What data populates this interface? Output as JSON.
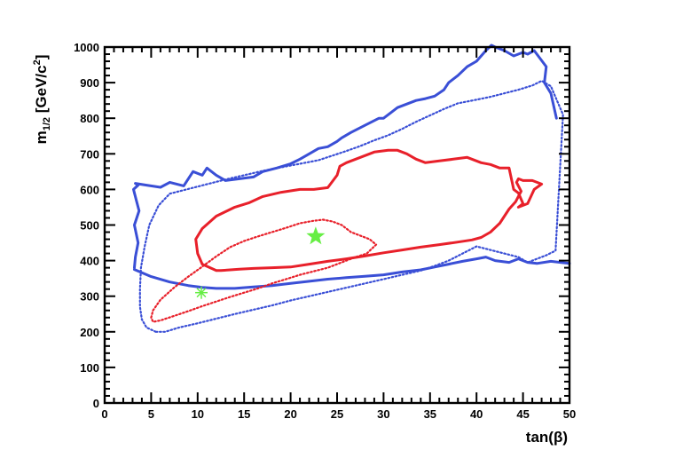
{
  "chart_data": {
    "type": "line",
    "xlabel": "tan(β)",
    "ylabel": "m1/2 [GeV/c2]",
    "xlim": [
      0,
      50
    ],
    "ylim": [
      0,
      1000
    ],
    "xticks": [
      "0",
      "5",
      "10",
      "15",
      "20",
      "25",
      "30",
      "35",
      "40",
      "45",
      "50"
    ],
    "yticks": [
      "0",
      "100",
      "200",
      "300",
      "400",
      "500",
      "600",
      "700",
      "800",
      "900",
      "1000"
    ],
    "grid": false,
    "colors": {
      "blue": "#3a4fd6",
      "red": "#e8202a",
      "marker": "#66ee44"
    },
    "series": [
      {
        "style": "solid",
        "color": "#3a4fd6",
        "x": [
          3.2,
          3.3,
          3.6,
          3.2,
          3.7,
          3.4,
          3.1,
          3.6,
          3.3,
          4.5,
          6,
          7,
          8.5,
          9.5,
          10.5,
          11,
          12,
          13,
          14.5,
          16,
          17,
          18.5,
          20,
          21,
          22,
          23,
          24,
          25,
          25.5,
          26.5,
          28,
          29.5,
          30,
          31,
          31.5,
          32.5,
          33.5,
          34.5,
          35.5,
          36.5,
          37,
          38,
          39,
          40,
          41,
          41.6,
          42,
          43,
          44,
          45,
          45.5,
          46.2,
          47.5,
          47.3,
          48,
          48.6
        ],
        "y": [
          380,
          410,
          450,
          500,
          540,
          570,
          600,
          612,
          617,
          612,
          606,
          620,
          610,
          650,
          640,
          660,
          640,
          625,
          630,
          635,
          650,
          660,
          672,
          685,
          700,
          715,
          720,
          735,
          745,
          760,
          780,
          800,
          800,
          820,
          830,
          840,
          850,
          855,
          862,
          880,
          900,
          920,
          945,
          960,
          990,
          1005,
          1000,
          990,
          975,
          985,
          980,
          990,
          945,
          900,
          870,
          800
        ]
      },
      {
        "style": "solid",
        "color": "#3a4fd6",
        "x": [
          3.2,
          5,
          7,
          9,
          10.5,
          12,
          14,
          16,
          18,
          20,
          22,
          24,
          26,
          28,
          30,
          32,
          34,
          35.5,
          37,
          38.5,
          40,
          41,
          42,
          43.5,
          44.5,
          45.5,
          46.5,
          48,
          50
        ],
        "y": [
          375,
          355,
          340,
          330,
          325,
          322,
          322,
          326,
          330,
          336,
          342,
          348,
          352,
          356,
          360,
          368,
          374,
          382,
          390,
          398,
          405,
          410,
          400,
          395,
          405,
          395,
          392,
          398,
          392
        ]
      },
      {
        "style": "dotted",
        "color": "#3a4fd6",
        "x": [
          5.5,
          4.5,
          4.0,
          3.8,
          3.8,
          3.9,
          4.3,
          4.8,
          5.8,
          7,
          8.5,
          10,
          11.5,
          13,
          15,
          17,
          19,
          21,
          23,
          24.5,
          26,
          27.5,
          29,
          30.5,
          32,
          33.5,
          35,
          36.5,
          38,
          40,
          41.5,
          43,
          44.5,
          46,
          47,
          48,
          49.3,
          48.5,
          47.5,
          46.5,
          45.5,
          44.5,
          43,
          41.5,
          40,
          38.5,
          37,
          35.5,
          34,
          32,
          30,
          28,
          26,
          24,
          22,
          20,
          18,
          16,
          14,
          12,
          10,
          8,
          6.5,
          5.5
        ],
        "y": [
          200,
          212,
          235,
          270,
          320,
          380,
          440,
          500,
          555,
          588,
          598,
          608,
          618,
          628,
          640,
          652,
          662,
          672,
          682,
          695,
          708,
          722,
          738,
          752,
          770,
          790,
          808,
          826,
          842,
          852,
          860,
          870,
          880,
          892,
          905,
          890,
          810,
          428,
          415,
          405,
          395,
          410,
          420,
          430,
          440,
          420,
          400,
          385,
          372,
          360,
          348,
          336,
          324,
          312,
          300,
          288,
          274,
          262,
          250,
          237,
          224,
          212,
          200,
          200
        ]
      },
      {
        "style": "solid",
        "color": "#e8202a",
        "x": [
          12,
          10.5,
          10.0,
          9.8,
          10.5,
          12,
          14,
          15.5,
          17,
          19,
          21,
          22.5,
          24,
          25,
          25.3,
          26,
          27.5,
          29,
          30.5,
          31.5,
          32.5,
          33.5,
          34.5,
          36,
          37.5,
          39,
          40.5,
          41.5,
          42.5,
          43.5,
          44,
          44.5,
          45,
          44.5,
          45.5,
          46.2,
          47,
          46,
          45,
          44.5,
          44.3,
          44.8,
          44.2,
          43.5,
          42.5,
          41.5,
          40.5,
          39.5,
          38,
          36,
          34,
          32,
          30,
          28,
          26,
          24,
          22,
          20,
          18,
          16,
          14.5,
          13.5,
          12.5,
          12
        ],
        "y": [
          372,
          390,
          420,
          460,
          490,
          525,
          550,
          562,
          580,
          592,
          600,
          600,
          605,
          640,
          665,
          675,
          690,
          705,
          710,
          710,
          700,
          685,
          675,
          680,
          685,
          690,
          675,
          670,
          660,
          660,
          600,
          590,
          560,
          550,
          560,
          600,
          615,
          625,
          625,
          630,
          620,
          595,
          565,
          545,
          505,
          480,
          465,
          458,
          452,
          445,
          438,
          430,
          422,
          413,
          405,
          398,
          390,
          382,
          380,
          378,
          376,
          374,
          372,
          372
        ]
      },
      {
        "style": "dotted",
        "color": "#e8202a",
        "x": [
          5,
          5.2,
          6,
          7.5,
          9,
          10.5,
          12,
          13.5,
          15,
          16.5,
          18,
          19.5,
          21,
          22.5,
          23.5,
          24.5,
          25.5,
          26.5,
          27.5,
          28.5,
          29.2,
          28.2,
          27,
          25.5,
          24,
          22.5,
          21,
          19.5,
          18,
          16.5,
          15,
          13.5,
          12,
          10.5,
          9,
          7.5,
          6,
          5.2,
          5
        ],
        "y": [
          240,
          260,
          290,
          325,
          355,
          383,
          412,
          438,
          455,
          468,
          480,
          492,
          505,
          512,
          515,
          510,
          500,
          480,
          470,
          460,
          445,
          420,
          410,
          395,
          380,
          370,
          360,
          348,
          336,
          322,
          310,
          298,
          285,
          272,
          258,
          245,
          232,
          228,
          240
        ]
      }
    ],
    "markers": [
      {
        "shape": "star",
        "x": 22.7,
        "y": 468,
        "color": "#66ee44"
      },
      {
        "shape": "asterisk",
        "x": 10.4,
        "y": 310,
        "color": "#66ee44"
      }
    ]
  }
}
